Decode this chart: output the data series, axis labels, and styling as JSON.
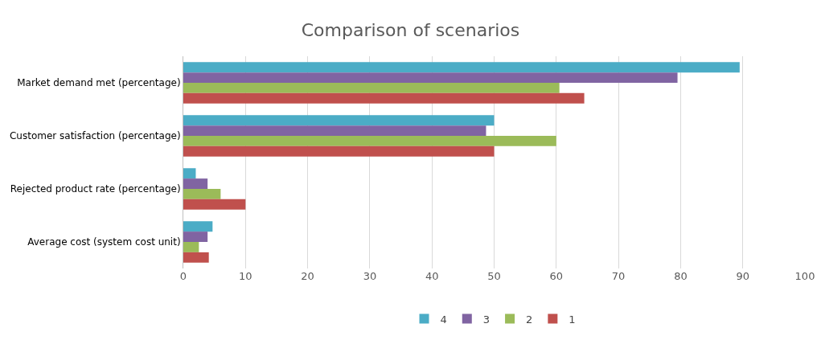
{
  "chart_data": {
    "type": "bar",
    "title": "Comparison of scenarios",
    "orientation": "horizontal",
    "categories": [
      "Market demand met (percentage)",
      "Customer satisfaction (percentage)",
      "Rejected product rate (percentage)",
      "Average cost (system cost unit)"
    ],
    "series": [
      {
        "name": "4",
        "color": "#4bacc6",
        "values": [
          89.5,
          50,
          2,
          4.7
        ]
      },
      {
        "name": "3",
        "color": "#8064a2",
        "values": [
          79.5,
          48.7,
          3.9,
          3.9
        ]
      },
      {
        "name": "2",
        "color": "#9bbb59",
        "values": [
          60.5,
          60,
          6,
          2.5
        ]
      },
      {
        "name": "1",
        "color": "#c0504d",
        "values": [
          64.5,
          50,
          10,
          4.1
        ]
      }
    ],
    "xlim": [
      0,
      100
    ],
    "xticks": [
      0,
      10,
      20,
      30,
      40,
      50,
      60,
      70,
      80,
      90,
      100
    ],
    "grid": "x",
    "legend": "bottom"
  }
}
